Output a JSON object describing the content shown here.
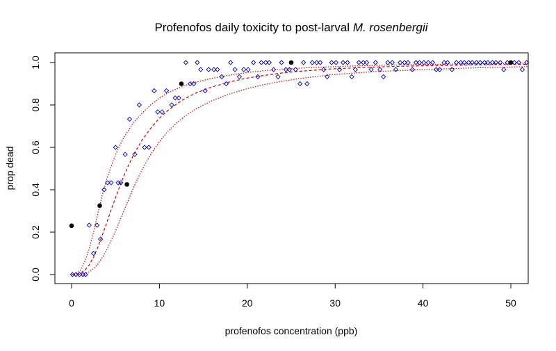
{
  "chart_data": {
    "type": "scatter",
    "title": "Profenofos daily toxicity to post-larval",
    "title_italic": "M. rosenbergii",
    "xlabel": "profenofos concentration (ppb)",
    "ylabel": "prop dead",
    "xlim": [
      0,
      52
    ],
    "ylim": [
      0,
      1
    ],
    "xticks": [
      0,
      10,
      20,
      30,
      40,
      50
    ],
    "yticks": [
      0.0,
      0.2,
      0.4,
      0.6,
      0.8,
      1.0
    ],
    "xtick_labels": [
      "0",
      "10",
      "20",
      "30",
      "40",
      "50"
    ],
    "ytick_labels": [
      "0.0",
      "0.2",
      "0.4",
      "0.6",
      "0.8",
      "1.0"
    ],
    "observed": {
      "marker": "filled-circle",
      "color": "#000000",
      "points": [
        [
          0,
          0.23
        ],
        [
          3.2,
          0.325
        ],
        [
          6.3,
          0.425
        ],
        [
          12.5,
          0.9
        ],
        [
          25,
          1.0
        ],
        [
          50,
          1.0
        ]
      ]
    },
    "simulated": {
      "marker": "open-diamond",
      "color": "#0000cc",
      "points": [
        [
          0.1,
          0.0
        ],
        [
          0.5,
          0.0
        ],
        [
          0.9,
          0.0
        ],
        [
          1.3,
          0.0
        ],
        [
          1.6,
          0.0
        ],
        [
          2.0,
          0.233
        ],
        [
          2.5,
          0.1
        ],
        [
          2.9,
          0.233
        ],
        [
          3.3,
          0.167
        ],
        [
          3.7,
          0.4
        ],
        [
          4.1,
          0.433
        ],
        [
          4.5,
          0.433
        ],
        [
          5.0,
          0.6
        ],
        [
          5.3,
          0.433
        ],
        [
          5.6,
          0.433
        ],
        [
          6.1,
          0.567
        ],
        [
          6.6,
          0.733
        ],
        [
          7.2,
          0.567
        ],
        [
          7.7,
          0.8
        ],
        [
          8.3,
          0.6
        ],
        [
          8.8,
          0.6
        ],
        [
          9.4,
          0.867
        ],
        [
          9.8,
          0.767
        ],
        [
          10.3,
          0.767
        ],
        [
          10.8,
          0.867
        ],
        [
          11.4,
          0.8
        ],
        [
          11.8,
          0.833
        ],
        [
          12.2,
          0.833
        ],
        [
          13.0,
          1.0
        ],
        [
          13.5,
          0.9
        ],
        [
          13.9,
          0.9
        ],
        [
          14.3,
          1.0
        ],
        [
          14.7,
          0.967
        ],
        [
          15.2,
          0.867
        ],
        [
          15.6,
          0.967
        ],
        [
          16.2,
          0.967
        ],
        [
          16.6,
          0.967
        ],
        [
          17.1,
          0.933
        ],
        [
          17.6,
          0.9
        ],
        [
          18.1,
          1.0
        ],
        [
          18.6,
          0.967
        ],
        [
          19.1,
          0.933
        ],
        [
          19.6,
          0.967
        ],
        [
          20.1,
          0.967
        ],
        [
          20.7,
          1.0
        ],
        [
          21.2,
          0.933
        ],
        [
          21.6,
          1.0
        ],
        [
          22.1,
          1.0
        ],
        [
          22.5,
          1.0
        ],
        [
          23.0,
          0.967
        ],
        [
          23.5,
          0.933
        ],
        [
          23.9,
          1.0
        ],
        [
          24.4,
          0.967
        ],
        [
          24.8,
          0.967
        ],
        [
          25.5,
          0.967
        ],
        [
          26.0,
          0.9
        ],
        [
          26.4,
          1.0
        ],
        [
          26.8,
          0.9
        ],
        [
          27.4,
          1.0
        ],
        [
          27.9,
          1.0
        ],
        [
          28.3,
          1.0
        ],
        [
          28.7,
          0.967
        ],
        [
          29.1,
          0.933
        ],
        [
          29.6,
          1.0
        ],
        [
          30.1,
          1.0
        ],
        [
          30.5,
          0.967
        ],
        [
          30.9,
          1.0
        ],
        [
          31.4,
          1.0
        ],
        [
          31.9,
          0.933
        ],
        [
          32.3,
          0.967
        ],
        [
          32.7,
          1.0
        ],
        [
          33.2,
          1.0
        ],
        [
          33.6,
          1.0
        ],
        [
          34.1,
          0.967
        ],
        [
          34.6,
          1.0
        ],
        [
          35.1,
          0.967
        ],
        [
          35.5,
          0.933
        ],
        [
          36.0,
          1.0
        ],
        [
          36.5,
          1.0
        ],
        [
          36.9,
          0.967
        ],
        [
          37.4,
          1.0
        ],
        [
          37.9,
          1.0
        ],
        [
          38.3,
          1.0
        ],
        [
          38.8,
          0.967
        ],
        [
          39.2,
          1.0
        ],
        [
          39.6,
          1.0
        ],
        [
          40.1,
          1.0
        ],
        [
          40.6,
          1.0
        ],
        [
          41.1,
          1.0
        ],
        [
          41.5,
          0.967
        ],
        [
          41.9,
          0.967
        ],
        [
          42.4,
          1.0
        ],
        [
          42.8,
          1.0
        ],
        [
          43.3,
          0.967
        ],
        [
          43.8,
          1.0
        ],
        [
          44.3,
          1.0
        ],
        [
          44.7,
          1.0
        ],
        [
          45.2,
          1.0
        ],
        [
          45.6,
          1.0
        ],
        [
          46.1,
          1.0
        ],
        [
          46.5,
          1.0
        ],
        [
          47.0,
          1.0
        ],
        [
          47.4,
          1.0
        ],
        [
          47.9,
          1.0
        ],
        [
          48.3,
          1.0
        ],
        [
          48.8,
          1.0
        ],
        [
          49.2,
          0.967
        ],
        [
          49.6,
          1.0
        ],
        [
          50.4,
          1.0
        ],
        [
          50.9,
          1.0
        ],
        [
          51.3,
          0.967
        ],
        [
          51.8,
          1.0
        ]
      ]
    },
    "curves": {
      "color": "#cc0000",
      "fit": {
        "style": "dashed",
        "points": [
          [
            0,
            0
          ],
          [
            0.5,
            0.001
          ],
          [
            1,
            0.007
          ],
          [
            1.5,
            0.02
          ],
          [
            2,
            0.045
          ],
          [
            2.5,
            0.082
          ],
          [
            3,
            0.13
          ],
          [
            3.5,
            0.186
          ],
          [
            4,
            0.245
          ],
          [
            4.5,
            0.305
          ],
          [
            5,
            0.363
          ],
          [
            5.5,
            0.418
          ],
          [
            6,
            0.47
          ],
          [
            6.5,
            0.518
          ],
          [
            7,
            0.56
          ],
          [
            8,
            0.633
          ],
          [
            9,
            0.69
          ],
          [
            10,
            0.738
          ],
          [
            11,
            0.775
          ],
          [
            12,
            0.806
          ],
          [
            13,
            0.832
          ],
          [
            14,
            0.853
          ],
          [
            15,
            0.87
          ],
          [
            16,
            0.885
          ],
          [
            18,
            0.909
          ],
          [
            20,
            0.927
          ],
          [
            22,
            0.94
          ],
          [
            24,
            0.951
          ],
          [
            26,
            0.959
          ],
          [
            28,
            0.965
          ],
          [
            30,
            0.971
          ],
          [
            33,
            0.976
          ],
          [
            36,
            0.981
          ],
          [
            40,
            0.985
          ],
          [
            45,
            0.988
          ],
          [
            50,
            0.991
          ],
          [
            52,
            0.992
          ]
        ]
      },
      "upper": {
        "style": "dotted",
        "points": [
          [
            0,
            0
          ],
          [
            0.5,
            0.003
          ],
          [
            1,
            0.02
          ],
          [
            1.5,
            0.06
          ],
          [
            2,
            0.12
          ],
          [
            2.5,
            0.2
          ],
          [
            3,
            0.29
          ],
          [
            3.5,
            0.375
          ],
          [
            4,
            0.45
          ],
          [
            4.5,
            0.51
          ],
          [
            5,
            0.565
          ],
          [
            5.5,
            0.61
          ],
          [
            6,
            0.65
          ],
          [
            7,
            0.715
          ],
          [
            8,
            0.76
          ],
          [
            9,
            0.8
          ],
          [
            10,
            0.833
          ],
          [
            11,
            0.858
          ],
          [
            12,
            0.877
          ],
          [
            13,
            0.893
          ],
          [
            14,
            0.906
          ],
          [
            16,
            0.926
          ],
          [
            18,
            0.941
          ],
          [
            20,
            0.953
          ],
          [
            22,
            0.962
          ],
          [
            25,
            0.971
          ],
          [
            28,
            0.978
          ],
          [
            32,
            0.984
          ],
          [
            36,
            0.988
          ],
          [
            40,
            0.991
          ],
          [
            45,
            0.994
          ],
          [
            50,
            0.996
          ],
          [
            52,
            0.997
          ]
        ]
      },
      "lower": {
        "style": "dotted",
        "points": [
          [
            0,
            0
          ],
          [
            1,
            0.001
          ],
          [
            1.5,
            0.005
          ],
          [
            2,
            0.013
          ],
          [
            2.5,
            0.028
          ],
          [
            3,
            0.05
          ],
          [
            3.5,
            0.08
          ],
          [
            4,
            0.118
          ],
          [
            4.5,
            0.16
          ],
          [
            5,
            0.205
          ],
          [
            5.5,
            0.255
          ],
          [
            6,
            0.305
          ],
          [
            6.5,
            0.355
          ],
          [
            7,
            0.405
          ],
          [
            7.5,
            0.45
          ],
          [
            8,
            0.493
          ],
          [
            9,
            0.567
          ],
          [
            10,
            0.627
          ],
          [
            11,
            0.677
          ],
          [
            12,
            0.717
          ],
          [
            13,
            0.75
          ],
          [
            14,
            0.778
          ],
          [
            15,
            0.8
          ],
          [
            16,
            0.82
          ],
          [
            18,
            0.852
          ],
          [
            20,
            0.877
          ],
          [
            22,
            0.897
          ],
          [
            24,
            0.912
          ],
          [
            26,
            0.925
          ],
          [
            28,
            0.935
          ],
          [
            30,
            0.944
          ],
          [
            33,
            0.953
          ],
          [
            36,
            0.96
          ],
          [
            40,
            0.967
          ],
          [
            45,
            0.974
          ],
          [
            50,
            0.979
          ],
          [
            52,
            0.981
          ]
        ]
      }
    },
    "grid": false,
    "legend": "none"
  }
}
